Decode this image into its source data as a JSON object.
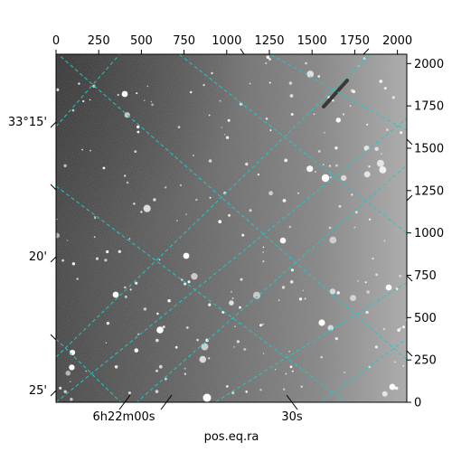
{
  "figure": {
    "xlabel": "pos.eq.ra",
    "top_x_ticks": [
      "0",
      "250",
      "500",
      "750",
      "1000",
      "1250",
      "1500",
      "1750",
      "2000"
    ],
    "right_y_ticks": [
      "0",
      "250",
      "500",
      "750",
      "1000",
      "1250",
      "1500",
      "1750",
      "2000"
    ],
    "ra_ticks": [
      "6h22m00s",
      "30s"
    ],
    "dec_ticks": [
      "33°15'",
      "20'",
      "25'"
    ],
    "grid_color": "#20c8c8",
    "image_style": "grayscale astronomical star field, darker toward the left edge, with a diagonal satellite trail near the top right"
  }
}
